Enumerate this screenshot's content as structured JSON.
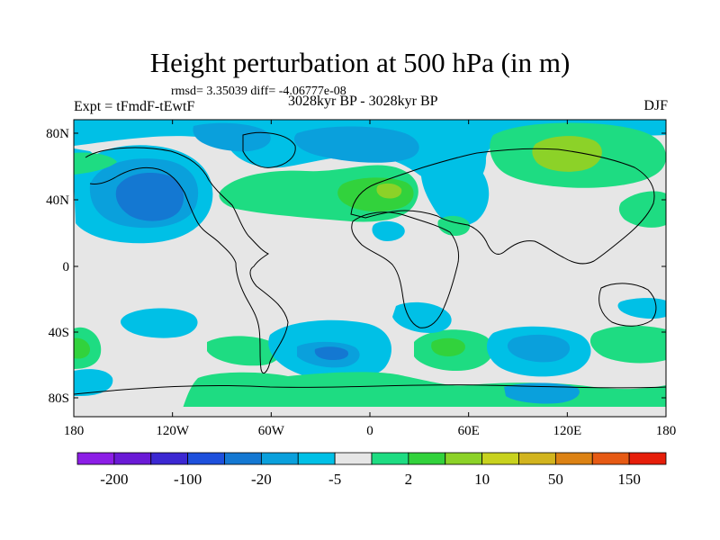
{
  "title": "Height perturbation at 500 hPa (in m)",
  "stats": "rmsd= 3.35039 diff= -4.06777e-08",
  "experiment": "Expt = tFmdF-tEwtF",
  "period": "3028kyr BP - 3028kyr BP",
  "season": "DJF",
  "lat_ticks": [
    "80N",
    "40N",
    "0",
    "40S",
    "80S"
  ],
  "lon_ticks": [
    "180",
    "120W",
    "60W",
    "0",
    "60E",
    "120E",
    "180"
  ],
  "colorbar": {
    "colors": [
      "#8c1ee6",
      "#6a1ad6",
      "#3c28d2",
      "#1e50dc",
      "#1478d2",
      "#0aa0dc",
      "#00c0e6",
      "#e6e6e6",
      "#1edc82",
      "#32d23c",
      "#8cd228",
      "#c8d21e",
      "#d2b41e",
      "#dc8214",
      "#e65a14",
      "#e61e0a"
    ],
    "labels": [
      "-200",
      "-100",
      "-20",
      "-5",
      "2",
      "10",
      "50",
      "150"
    ]
  },
  "palette": {
    "neutral": "#e6e6e6",
    "cyan": "#00c0e6",
    "lightblue": "#0aa0dc",
    "blue": "#1478d2",
    "seagreen": "#1edc82",
    "green": "#32d23c",
    "yellowgreen": "#8cd228"
  }
}
